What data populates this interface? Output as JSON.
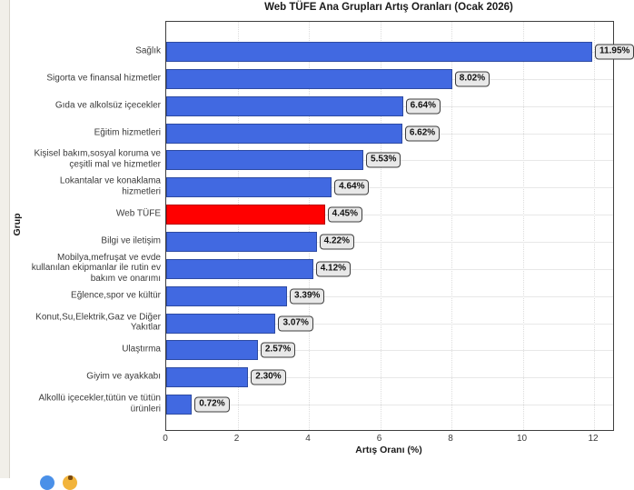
{
  "chart_data": {
    "type": "bar",
    "orientation": "horizontal",
    "title": "Web TÜFE Ana Grupları Artış Oranları (Ocak 2026)",
    "xlabel": "Artış Oranı (%)",
    "ylabel": "Grup",
    "xlim": [
      0,
      12.535
    ],
    "xticks": [
      0,
      2,
      4,
      6,
      8,
      10,
      12
    ],
    "grid": true,
    "legend": "none",
    "categories": [
      "Sağlık",
      "Sigorta ve finansal hizmetler",
      "Gıda ve alkolsüz içecekler",
      "Eğitim hizmetleri",
      "Kişisel bakım,sosyal koruma ve çeşitli mal ve hizmetler",
      "Lokantalar ve konaklama hizmetleri",
      "Web TÜFE",
      "Bilgi ve iletişim",
      "Mobilya,mefruşat ve evde kullanılan ekipmanlar ile rutin ev bakım ve onarımı",
      "Eğlence,spor ve kültür",
      "Konut,Su,Elektrik,Gaz ve Diğer Yakıtlar",
      "Ulaştırma",
      "Giyim ve ayakkabı",
      "Alkollü içecekler,tütün ve tütün ürünleri"
    ],
    "values": [
      11.95,
      8.02,
      6.64,
      6.62,
      5.53,
      4.64,
      4.45,
      4.22,
      4.12,
      3.39,
      3.07,
      2.57,
      2.3,
      0.72
    ],
    "value_labels": [
      "11.95%",
      "8.02%",
      "6.64%",
      "6.62%",
      "5.53%",
      "4.64%",
      "4.45%",
      "4.22%",
      "4.12%",
      "3.39%",
      "3.07%",
      "2.57%",
      "2.30%",
      "0.72%"
    ],
    "highlight_index": 6,
    "colors": {
      "bar_default": "#4169e1",
      "bar_highlight": "#ff0000",
      "value_box_bg": "#e8e8e8",
      "value_box_border": "#3e3e3e",
      "plot_border": "#3e3e3e",
      "hgrid": "#e8e8e8",
      "vgrid": "#dcdcdc"
    }
  },
  "decor": {
    "left_strip_color": "#f1efe9",
    "partial_icons": [
      {
        "name": "blue-circle",
        "color": "#4a90e8"
      },
      {
        "name": "yellow-circle",
        "color": "#f2b43c",
        "core_color": "#7a4a10"
      }
    ]
  }
}
